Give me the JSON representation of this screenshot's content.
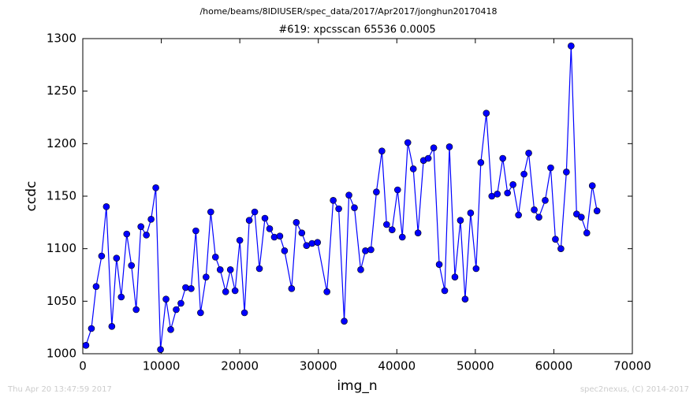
{
  "header": "/home/beams/8IDIUSER/spec_data/2017/Apr2017/jonghun20170418",
  "footer_left": "Thu Apr 20 13:47:59 2017",
  "footer_right": "spec2nexus, (C) 2014-2017",
  "chart_data": {
    "type": "line",
    "title": "#619: xpcsscan 65536 0.0005",
    "x_label": "img_n",
    "y_label": "ccdc",
    "x": [
      400,
      1100,
      1700,
      2400,
      3000,
      3700,
      4300,
      4900,
      5600,
      6200,
      6800,
      7400,
      8100,
      8700,
      9300,
      9900,
      10600,
      11200,
      11900,
      12500,
      13100,
      13800,
      14400,
      15000,
      15700,
      16300,
      16900,
      17500,
      18200,
      18800,
      19400,
      20000,
      20600,
      21200,
      21900,
      22500,
      23200,
      23800,
      24400,
      25100,
      25700,
      26600,
      27200,
      27900,
      28500,
      29200,
      29900,
      31100,
      31900,
      32600,
      33300,
      33900,
      34600,
      35400,
      36000,
      36700,
      37400,
      38100,
      38700,
      39400,
      40100,
      40700,
      41400,
      42100,
      42700,
      43400,
      44000,
      44700,
      45400,
      46100,
      46700,
      47400,
      48100,
      48700,
      49400,
      50100,
      50700,
      51400,
      52100,
      52800,
      53500,
      54100,
      54800,
      55500,
      56200,
      56800,
      57500,
      58100,
      58900,
      59600,
      60200,
      60900,
      61600,
      62200,
      62900,
      63500,
      64200,
      64900,
      65500
    ],
    "series": [
      {
        "name": "ccdc",
        "color": "#0000ff",
        "values": [
          1008,
          1024,
          1064,
          1093,
          1140,
          1026,
          1091,
          1054,
          1114,
          1084,
          1042,
          1121,
          1113,
          1128,
          1158,
          1004,
          1052,
          1023,
          1042,
          1048,
          1063,
          1062,
          1117,
          1039,
          1073,
          1135,
          1092,
          1080,
          1059,
          1080,
          1060,
          1108,
          1039,
          1127,
          1135,
          1081,
          1129,
          1119,
          1111,
          1112,
          1098,
          1062,
          1125,
          1115,
          1103,
          1105,
          1106,
          1059,
          1146,
          1138,
          1031,
          1151,
          1139,
          1080,
          1098,
          1099,
          1154,
          1193,
          1123,
          1118,
          1156,
          1111,
          1201,
          1176,
          1115,
          1184,
          1186,
          1196,
          1085,
          1060,
          1197,
          1073,
          1127,
          1052,
          1134,
          1081,
          1182,
          1229,
          1150,
          1152,
          1186,
          1153,
          1161,
          1132,
          1171,
          1191,
          1137,
          1130,
          1146,
          1177,
          1109,
          1100,
          1173,
          1293,
          1133,
          1130,
          1115,
          1160,
          1136
        ]
      }
    ],
    "xlim": [
      0,
      70000
    ],
    "xticks": [
      0,
      10000,
      20000,
      30000,
      40000,
      50000,
      60000,
      70000
    ],
    "ylim": [
      1000,
      1300
    ],
    "yticks": [
      1000,
      1050,
      1100,
      1150,
      1200,
      1250,
      1300
    ],
    "grid": false
  }
}
